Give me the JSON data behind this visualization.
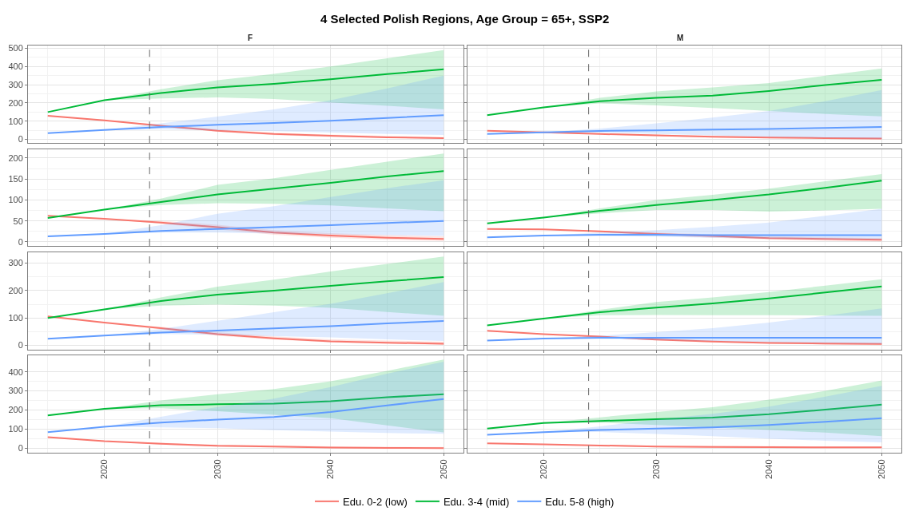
{
  "chart_data": [
    {
      "type": "line",
      "title": "4 Selected Polish Regions, Age Group = 65+, SSP2",
      "subtitle": "F",
      "legend": "bottom",
      "grid": true,
      "tick_labels": "y",
      "x": [
        2015,
        2020,
        2025,
        2030,
        2035,
        2040,
        2045,
        2050
      ],
      "xlim": [
        2013.25,
        2051.75
      ],
      "xticks": [
        2020,
        2030,
        2040,
        2050
      ],
      "ylim": [
        -20,
        515
      ],
      "yticks": [
        0,
        100,
        200,
        300,
        400,
        500
      ],
      "ref_lines": [
        {
          "axis": "x",
          "value": 2024,
          "line_style": "dashed",
          "color": "#666666"
        }
      ],
      "series": [
        {
          "name": "Edu. 0-2 (low)",
          "color": "#f8766d",
          "values": [
            130,
            105,
            75,
            48,
            30,
            20,
            12,
            7
          ],
          "lower": [
            130,
            105,
            70,
            42,
            24,
            14,
            8,
            3
          ],
          "upper": [
            130,
            105,
            80,
            55,
            37,
            27,
            19.5,
            12
          ]
        },
        {
          "name": "Edu. 3-4 (mid)",
          "color": "#00ba38",
          "values": [
            150,
            215,
            255,
            285,
            305,
            330,
            358,
            385
          ],
          "lower": [
            150,
            215,
            225,
            230,
            222,
            203.5,
            185,
            165
          ],
          "upper": [
            150,
            215,
            275,
            325,
            360,
            400,
            445,
            490
          ]
        },
        {
          "name": "Edu. 5-8 (high)",
          "color": "#619cff",
          "values": [
            35,
            52,
            68,
            80,
            90,
            102,
            118,
            133
          ],
          "lower": [
            35,
            52,
            55,
            50,
            45,
            38,
            30,
            25
          ],
          "upper": [
            35,
            52,
            88.5,
            125,
            165,
            215,
            280,
            350
          ]
        }
      ]
    },
    {
      "type": "line",
      "subtitle": "M",
      "grid": true,
      "tick_labels": false,
      "x": [
        2015,
        2020,
        2025,
        2030,
        2035,
        2040,
        2045,
        2050
      ],
      "xlim": [
        2013.25,
        2051.75
      ],
      "xticks": [
        2020,
        2030,
        2040,
        2050
      ],
      "ylim": [
        -20,
        515
      ],
      "yticks": [
        0,
        100,
        200,
        300,
        400,
        500
      ],
      "ref_lines": [
        {
          "axis": "x",
          "value": 2024,
          "line_style": "dashed",
          "color": "#666666"
        }
      ],
      "series": [
        {
          "color": "#f8766d",
          "values": [
            48,
            39,
            30,
            22,
            15,
            11,
            7,
            5
          ],
          "lower": [
            48,
            39,
            27,
            18,
            11,
            6,
            3,
            1
          ],
          "upper": [
            48,
            39,
            33,
            27,
            20,
            16,
            12,
            9
          ]
        },
        {
          "color": "#00ba38",
          "values": [
            133,
            176,
            210,
            228,
            240,
            266,
            298,
            327
          ],
          "lower": [
            133,
            176,
            198,
            187,
            172,
            156,
            140,
            126
          ],
          "upper": [
            133,
            176,
            228,
            263,
            285,
            309,
            350,
            389
          ]
        },
        {
          "color": "#619cff",
          "values": [
            30,
            39,
            47,
            50,
            54,
            57,
            63,
            69
          ],
          "lower": [
            30,
            39,
            38,
            30,
            22,
            14,
            8,
            4
          ],
          "upper": [
            30,
            39,
            60,
            88,
            120,
            156,
            210,
            271
          ]
        }
      ]
    },
    {
      "type": "line",
      "grid": true,
      "tick_labels": "y",
      "x": [
        2015,
        2020,
        2025,
        2030,
        2035,
        2040,
        2045,
        2050
      ],
      "xlim": [
        2013.25,
        2051.75
      ],
      "xticks": [
        2020,
        2030,
        2040,
        2050
      ],
      "ylim": [
        -10,
        221
      ],
      "yticks": [
        0,
        50,
        100,
        150,
        200
      ],
      "ref_lines": [
        {
          "axis": "x",
          "value": 2024,
          "line_style": "dashed",
          "color": "#666666"
        }
      ],
      "series": [
        {
          "color": "#f8766d",
          "values": [
            62,
            55,
            46,
            35,
            22,
            15,
            10,
            7
          ],
          "lower": [
            62,
            55,
            43,
            30,
            17,
            10,
            5,
            2
          ],
          "upper": [
            62,
            55,
            50,
            41,
            28,
            21,
            16,
            13
          ]
        },
        {
          "color": "#00ba38",
          "values": [
            57,
            77,
            95,
            113,
            127,
            141,
            156,
            169
          ],
          "lower": [
            57,
            77,
            88,
            92,
            91,
            87,
            80,
            73
          ],
          "upper": [
            57,
            77,
            103,
            136,
            152,
            172,
            191.5,
            211
          ]
        },
        {
          "color": "#619cff",
          "values": [
            13,
            19,
            26,
            31,
            35,
            40,
            45,
            50
          ],
          "lower": [
            13,
            19,
            22,
            22,
            20,
            18,
            16,
            14
          ],
          "upper": [
            13,
            19,
            40,
            67,
            85,
            107,
            128,
            147
          ]
        }
      ]
    },
    {
      "type": "line",
      "grid": true,
      "tick_labels": false,
      "x": [
        2015,
        2020,
        2025,
        2030,
        2035,
        2040,
        2045,
        2050
      ],
      "xlim": [
        2013.25,
        2051.75
      ],
      "xticks": [
        2020,
        2030,
        2040,
        2050
      ],
      "ylim": [
        -10,
        221
      ],
      "yticks": [
        0,
        50,
        100,
        150,
        200
      ],
      "ref_lines": [
        {
          "axis": "x",
          "value": 2024,
          "line_style": "dashed",
          "color": "#666666"
        }
      ],
      "series": [
        {
          "color": "#f8766d",
          "values": [
            31,
            30,
            25,
            19,
            14,
            9,
            7,
            5
          ],
          "lower": [
            31,
            30,
            23,
            16,
            10,
            6,
            3,
            1
          ],
          "upper": [
            31,
            30,
            27,
            22,
            18,
            13,
            11,
            9
          ]
        },
        {
          "color": "#00ba38",
          "values": [
            44,
            58,
            74,
            88,
            100,
            113,
            129,
            146
          ],
          "lower": [
            44,
            58,
            68,
            76,
            76,
            72,
            75,
            79
          ],
          "upper": [
            44,
            58,
            80,
            100,
            112,
            127,
            144.5,
            162
          ]
        },
        {
          "color": "#619cff",
          "values": [
            11,
            15,
            17,
            17,
            16,
            16,
            16,
            16
          ],
          "lower": [
            11,
            15,
            14,
            12,
            10,
            8,
            6,
            5
          ],
          "upper": [
            11,
            15,
            22,
            28,
            36,
            46,
            62,
            79
          ]
        }
      ]
    },
    {
      "type": "line",
      "grid": true,
      "tick_labels": "y",
      "x": [
        2015,
        2020,
        2025,
        2030,
        2035,
        2040,
        2045,
        2050
      ],
      "xlim": [
        2013.25,
        2051.75
      ],
      "xticks": [
        2020,
        2030,
        2040,
        2050
      ],
      "ylim": [
        -16,
        340
      ],
      "yticks": [
        0,
        100,
        200,
        300
      ],
      "ref_lines": [
        {
          "axis": "x",
          "value": 2024,
          "line_style": "dashed",
          "color": "#666666"
        }
      ],
      "series": [
        {
          "color": "#f8766d",
          "values": [
            106,
            83,
            63,
            41,
            26,
            15,
            10,
            6
          ],
          "lower": [
            106,
            83,
            58.7,
            35,
            21,
            11,
            6,
            2
          ],
          "upper": [
            106,
            83,
            68,
            48,
            33,
            22,
            17.5,
            13
          ]
        },
        {
          "color": "#00ba38",
          "values": [
            100,
            131,
            162,
            185,
            200,
            217,
            234,
            249
          ],
          "lower": [
            100,
            131,
            145,
            149,
            145,
            137,
            122,
            108
          ],
          "upper": [
            100,
            131,
            175,
            214,
            240,
            270,
            297,
            324
          ]
        },
        {
          "color": "#619cff",
          "values": [
            24,
            36,
            47,
            54,
            62,
            70,
            80,
            89
          ],
          "lower": [
            24,
            36,
            42,
            39,
            34,
            29,
            22,
            16
          ],
          "upper": [
            24,
            36,
            60,
            90,
            121,
            152,
            190,
            231
          ]
        }
      ]
    },
    {
      "type": "line",
      "grid": true,
      "tick_labels": false,
      "x": [
        2015,
        2020,
        2025,
        2030,
        2035,
        2040,
        2045,
        2050
      ],
      "xlim": [
        2013.25,
        2051.75
      ],
      "xticks": [
        2020,
        2030,
        2040,
        2050
      ],
      "ylim": [
        -16,
        340
      ],
      "yticks": [
        0,
        100,
        200,
        300
      ],
      "ref_lines": [
        {
          "axis": "x",
          "value": 2024,
          "line_style": "dashed",
          "color": "#666666"
        }
      ],
      "series": [
        {
          "color": "#f8766d",
          "values": [
            53,
            41,
            32,
            21,
            14,
            9,
            7,
            5
          ],
          "lower": [
            53,
            41,
            30,
            18,
            11,
            6,
            3,
            1
          ],
          "upper": [
            53,
            41,
            35,
            25,
            18,
            13,
            11,
            9
          ]
        },
        {
          "color": "#00ba38",
          "values": [
            73,
            98,
            121,
            138,
            153,
            171,
            193,
            215
          ],
          "lower": [
            73,
            98,
            110,
            111,
            110,
            110,
            109,
            108
          ],
          "upper": [
            73,
            98,
            130,
            158,
            175,
            195,
            218,
            241
          ]
        },
        {
          "color": "#619cff",
          "values": [
            18,
            25,
            28,
            28,
            28,
            28,
            28,
            28
          ],
          "lower": [
            18,
            25,
            24,
            20,
            16,
            12,
            8,
            5
          ],
          "upper": [
            18,
            25,
            35,
            48,
            63,
            83,
            108,
            135
          ]
        }
      ]
    },
    {
      "type": "line",
      "grid": true,
      "x": [
        2015,
        2020,
        2025,
        2030,
        2035,
        2040,
        2045,
        2050
      ],
      "xlim": [
        2013.25,
        2051.75
      ],
      "xticks": [
        2020,
        2030,
        2040,
        2050
      ],
      "ylim": [
        -23,
        487
      ],
      "yticks": [
        0,
        100,
        200,
        300,
        400
      ],
      "ref_lines": [
        {
          "axis": "x",
          "value": 2024,
          "line_style": "dashed",
          "color": "#666666"
        }
      ],
      "series": [
        {
          "color": "#f8766d",
          "values": [
            58,
            37,
            24,
            13,
            9,
            4,
            2,
            1
          ],
          "lower": [
            58,
            37,
            20,
            8,
            4,
            1,
            0,
            0
          ],
          "upper": [
            58,
            37,
            29,
            19,
            15,
            10,
            8,
            7
          ]
        },
        {
          "color": "#00ba38",
          "values": [
            172,
            207,
            225,
            230,
            234,
            246,
            267,
            283
          ],
          "lower": [
            172,
            207,
            210,
            194,
            175,
            157,
            120,
            83
          ],
          "upper": [
            172,
            207,
            250,
            283,
            310,
            350,
            405,
            464
          ]
        },
        {
          "color": "#619cff",
          "values": [
            84,
            113,
            135,
            150,
            164,
            190,
            224,
            258
          ],
          "lower": [
            84,
            113,
            110,
            105,
            95,
            87.5,
            80,
            76
          ],
          "upper": [
            84,
            113,
            165,
            216,
            260,
            320,
            390,
            453
          ]
        }
      ]
    },
    {
      "type": "line",
      "grid": true,
      "tick_labels": "x",
      "x": [
        2015,
        2020,
        2025,
        2030,
        2035,
        2040,
        2045,
        2050
      ],
      "xlim": [
        2013.25,
        2051.75
      ],
      "xticks": [
        2020,
        2030,
        2040,
        2050
      ],
      "ylim": [
        -23,
        487
      ],
      "yticks": [
        0,
        100,
        200,
        300,
        400
      ],
      "ref_lines": [
        {
          "axis": "x",
          "value": 2024,
          "line_style": "dashed",
          "color": "#666666"
        }
      ],
      "series": [
        {
          "color": "#f8766d",
          "values": [
            26,
            21,
            15,
            9,
            7,
            6,
            5,
            5
          ],
          "lower": [
            26,
            21,
            12,
            5,
            2,
            1,
            0,
            0
          ],
          "upper": [
            26,
            21,
            19,
            14,
            12,
            11,
            10,
            10
          ]
        },
        {
          "color": "#00ba38",
          "values": [
            103,
            132,
            143,
            152,
            161,
            178,
            202,
            228
          ],
          "lower": [
            103,
            132,
            135,
            122,
            110,
            96,
            82,
            64
          ],
          "upper": [
            103,
            132,
            162,
            190,
            215,
            254,
            300,
            355
          ]
        },
        {
          "color": "#619cff",
          "values": [
            71,
            84,
            96,
            103,
            110,
            122,
            139,
            158
          ],
          "lower": [
            71,
            84,
            85,
            75,
            64,
            50,
            40,
            31
          ],
          "upper": [
            71,
            84,
            115,
            150,
            180,
            218,
            270,
            326
          ]
        }
      ]
    }
  ]
}
